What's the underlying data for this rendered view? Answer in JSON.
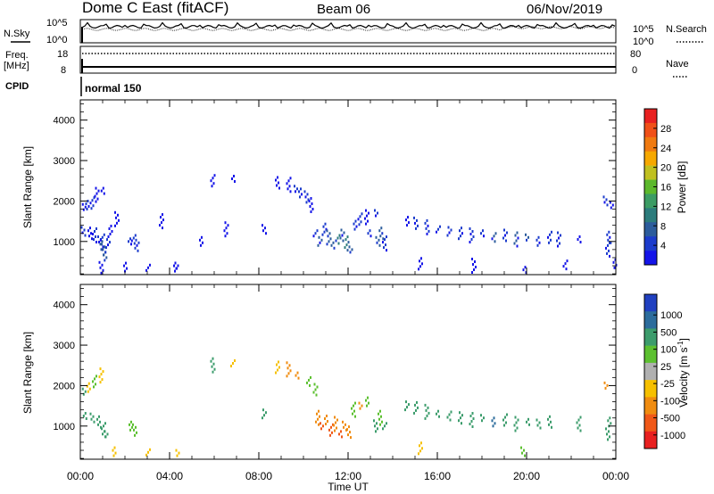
{
  "header": {
    "title": "Dome C East (fitACF)",
    "beam": "Beam 06",
    "date": "06/Nov/2019"
  },
  "strips": {
    "nsky_label": "N.Sky",
    "nsearch_label": "N.Search",
    "freq_label_1": "Freq.",
    "freq_label_2": "[MHz]",
    "nave_label": "Nave",
    "cpid_label": "CPID",
    "cpid_value": "normal 150",
    "noise_left_ticks": [
      "10^5",
      "10^0"
    ],
    "noise_right_ticks": [
      "10^5",
      "10^0"
    ],
    "freq_ticks": [
      "18",
      "8"
    ],
    "nave_ticks": [
      "80",
      "0"
    ]
  },
  "colorbars": {
    "power": {
      "label": "Power [dB]",
      "ticks": [
        "28",
        "24",
        "20",
        "16",
        "12",
        "8",
        "4"
      ],
      "colors": [
        "#e82020",
        "#f05018",
        "#f07a10",
        "#f6a800",
        "#c0c020",
        "#5cb82c",
        "#3c9c64",
        "#2c7c7c",
        "#2c5c9c",
        "#1c3ccc",
        "#1414e8"
      ]
    },
    "velocity": {
      "label": "Velocity [m s^-1]",
      "ticks": [
        "1000",
        "500",
        "100",
        "25",
        "-25",
        "-100",
        "-500",
        "-1000"
      ],
      "colors": [
        "#2040c0",
        "#2c6c9c",
        "#3c9c6c",
        "#5cc030",
        "#b0b0b0",
        "#f6c000",
        "#f08c10",
        "#f05818",
        "#e82020"
      ]
    }
  },
  "chart_data": [
    {
      "type": "heatmap",
      "id": "power",
      "title": "",
      "xlabel": "Time UT",
      "ylabel": "Slant Range [km]",
      "xlim": [
        0,
        24
      ],
      "ylim": [
        180,
        4500
      ],
      "x_ticks": [
        "00:00",
        "04:00",
        "08:00",
        "12:00",
        "16:00",
        "20:00",
        "00:00"
      ],
      "y_ticks": [
        "1000",
        "2000",
        "3000",
        "4000"
      ],
      "colorbar": "power",
      "points": [
        [
          0.15,
          1850,
          2
        ],
        [
          0.3,
          1900,
          3
        ],
        [
          0.5,
          1950,
          3
        ],
        [
          0.7,
          2150,
          1
        ],
        [
          0.95,
          2250,
          2
        ],
        [
          0.1,
          1250,
          3
        ],
        [
          0.4,
          1200,
          2
        ],
        [
          0.6,
          1150,
          3
        ],
        [
          0.8,
          1050,
          5
        ],
        [
          0.9,
          900,
          6
        ],
        [
          1.0,
          800,
          6
        ],
        [
          1.05,
          700,
          7
        ],
        [
          0.95,
          1100,
          4
        ],
        [
          1.2,
          950,
          4
        ],
        [
          1.3,
          1250,
          2
        ],
        [
          1.6,
          1550,
          1
        ],
        [
          2.2,
          1000,
          3
        ],
        [
          2.35,
          1050,
          4
        ],
        [
          2.5,
          900,
          4
        ],
        [
          3.6,
          1500,
          1
        ],
        [
          4.3,
          400,
          1
        ],
        [
          5.4,
          1000,
          1
        ],
        [
          5.9,
          2500,
          1
        ],
        [
          6.5,
          1300,
          1
        ],
        [
          6.8,
          2550,
          1
        ],
        [
          8.2,
          1300,
          1
        ],
        [
          8.8,
          2450,
          2
        ],
        [
          9.3,
          2400,
          2
        ],
        [
          9.6,
          2300,
          4
        ],
        [
          9.8,
          2200,
          3
        ],
        [
          10.1,
          2100,
          3
        ],
        [
          10.3,
          1900,
          2
        ],
        [
          10.5,
          1200,
          4
        ],
        [
          10.7,
          1000,
          6
        ],
        [
          10.9,
          1300,
          5
        ],
        [
          11.1,
          1100,
          7
        ],
        [
          11.3,
          900,
          8
        ],
        [
          11.5,
          1050,
          9
        ],
        [
          11.7,
          1150,
          6
        ],
        [
          11.9,
          950,
          10
        ],
        [
          12.1,
          800,
          7
        ],
        [
          12.3,
          1400,
          4
        ],
        [
          12.5,
          1550,
          3
        ],
        [
          12.8,
          1600,
          2
        ],
        [
          12.9,
          1200,
          3
        ],
        [
          13.3,
          1000,
          8
        ],
        [
          13.45,
          1200,
          7
        ],
        [
          13.6,
          950,
          5
        ],
        [
          13.2,
          1700,
          3
        ],
        [
          14.6,
          1500,
          2
        ],
        [
          15.0,
          1450,
          3
        ],
        [
          15.5,
          1350,
          4
        ],
        [
          16.0,
          1300,
          3
        ],
        [
          16.5,
          1250,
          5
        ],
        [
          17.0,
          1200,
          4
        ],
        [
          17.5,
          1150,
          4
        ],
        [
          18.0,
          1200,
          3
        ],
        [
          18.5,
          1100,
          6
        ],
        [
          19.0,
          1150,
          5
        ],
        [
          19.5,
          1050,
          6
        ],
        [
          20.0,
          1100,
          7
        ],
        [
          20.5,
          1000,
          4
        ],
        [
          21.0,
          1100,
          3
        ],
        [
          21.4,
          1050,
          3
        ],
        [
          22.3,
          1050,
          2
        ],
        [
          23.5,
          2000,
          4
        ],
        [
          23.65,
          1100,
          3
        ],
        [
          23.6,
          800,
          4
        ],
        [
          23.75,
          1900,
          2
        ],
        [
          23.9,
          450,
          1
        ],
        [
          0.9,
          350,
          1
        ],
        [
          2.0,
          300,
          1
        ],
        [
          3.0,
          350,
          1
        ],
        [
          4.2,
          300,
          1
        ],
        [
          15.2,
          450,
          1
        ],
        [
          17.6,
          400,
          1
        ],
        [
          19.9,
          300,
          2
        ],
        [
          21.7,
          420,
          1
        ]
      ]
    },
    {
      "type": "heatmap",
      "id": "velocity",
      "title": "",
      "xlabel": "Time UT",
      "ylabel": "Slant Range [km]",
      "xlim": [
        0,
        24
      ],
      "ylim": [
        180,
        4500
      ],
      "x_ticks": [
        "00:00",
        "04:00",
        "08:00",
        "12:00",
        "16:00",
        "20:00",
        "00:00"
      ],
      "y_ticks": [
        "1000",
        "2000",
        "3000",
        "4000"
      ],
      "colorbar": "velocity",
      "points": [
        [
          0.15,
          1850,
          150
        ],
        [
          0.35,
          1950,
          -80
        ],
        [
          0.6,
          2100,
          50
        ],
        [
          0.9,
          2250,
          -60
        ],
        [
          0.15,
          1250,
          150
        ],
        [
          0.5,
          1200,
          120
        ],
        [
          0.8,
          1100,
          150
        ],
        [
          1.0,
          900,
          150
        ],
        [
          1.1,
          800,
          150
        ],
        [
          2.2,
          1000,
          60
        ],
        [
          2.4,
          900,
          60
        ],
        [
          5.9,
          2500,
          200
        ],
        [
          6.8,
          2550,
          -100
        ],
        [
          8.2,
          1300,
          200
        ],
        [
          8.8,
          2450,
          -80
        ],
        [
          9.3,
          2400,
          -120
        ],
        [
          9.7,
          2250,
          -200
        ],
        [
          10.2,
          2100,
          60
        ],
        [
          10.5,
          1900,
          60
        ],
        [
          10.6,
          1200,
          -400
        ],
        [
          10.8,
          1000,
          -600
        ],
        [
          11.0,
          1150,
          -500
        ],
        [
          11.2,
          900,
          -700
        ],
        [
          11.4,
          1050,
          -500
        ],
        [
          11.6,
          800,
          -600
        ],
        [
          11.8,
          1000,
          -500
        ],
        [
          12.0,
          850,
          -500
        ],
        [
          12.2,
          1400,
          60
        ],
        [
          12.5,
          1500,
          -200
        ],
        [
          12.8,
          1600,
          40
        ],
        [
          13.2,
          1000,
          150
        ],
        [
          13.4,
          1200,
          60
        ],
        [
          13.6,
          1000,
          200
        ],
        [
          14.6,
          1500,
          300
        ],
        [
          15.0,
          1450,
          150
        ],
        [
          15.5,
          1350,
          200
        ],
        [
          16.0,
          1300,
          300
        ],
        [
          16.5,
          1250,
          250
        ],
        [
          17.0,
          1200,
          200
        ],
        [
          17.5,
          1150,
          300
        ],
        [
          18.0,
          1200,
          250
        ],
        [
          18.5,
          1100,
          600
        ],
        [
          19.0,
          1150,
          200
        ],
        [
          19.5,
          1050,
          250
        ],
        [
          20.0,
          1100,
          400
        ],
        [
          20.5,
          1050,
          300
        ],
        [
          21.0,
          1100,
          150
        ],
        [
          22.3,
          1050,
          150
        ],
        [
          23.5,
          2000,
          -120
        ],
        [
          23.65,
          1100,
          300
        ],
        [
          23.6,
          800,
          150
        ],
        [
          1.5,
          300,
          -80
        ],
        [
          3.0,
          350,
          -80
        ],
        [
          4.3,
          300,
          -60
        ],
        [
          15.2,
          450,
          -80
        ],
        [
          19.8,
          300,
          60
        ]
      ]
    }
  ]
}
